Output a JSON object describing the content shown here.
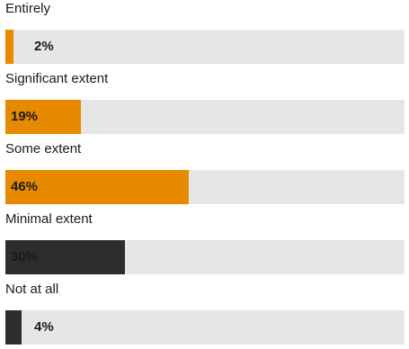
{
  "chart_data": {
    "type": "bar",
    "orientation": "horizontal",
    "categories": [
      "Entirely",
      "Significant extent",
      "Some extent",
      "Minimal extent",
      "Not at all"
    ],
    "values": [
      2,
      19,
      46,
      30,
      4
    ],
    "value_labels": [
      "2%",
      "19%",
      "46%",
      "30%",
      "4%"
    ],
    "colors": [
      "#e88a00",
      "#e88a00",
      "#e88a00",
      "#2d2d2d",
      "#2d2d2d"
    ],
    "track_color": "#e6e6e7",
    "xlim": [
      0,
      100
    ],
    "grid": false,
    "legend": "none"
  }
}
